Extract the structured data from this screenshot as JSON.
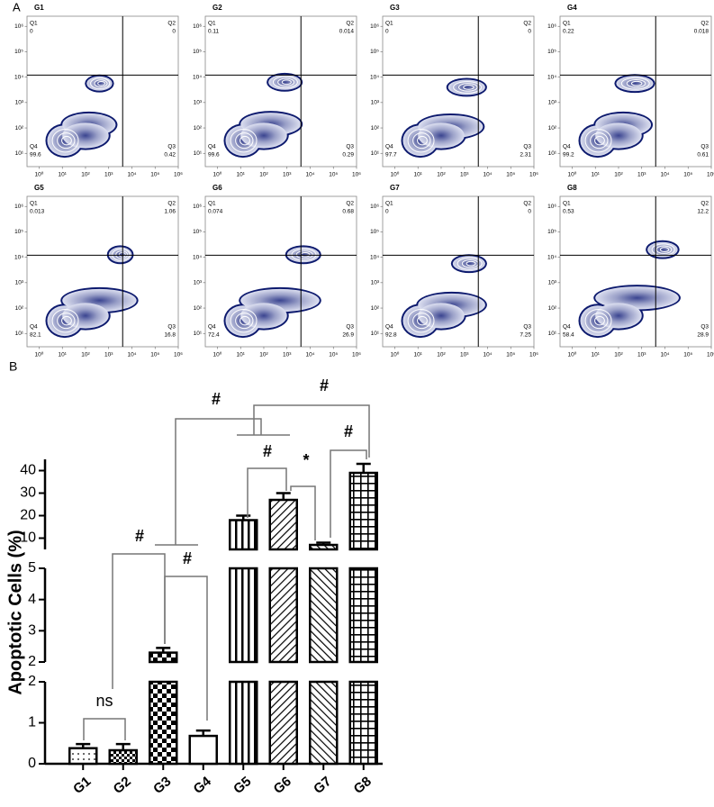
{
  "chart_data": [
    {
      "type": "flow",
      "panel_label": "A",
      "xlim": [
        0.3,
        1000000
      ],
      "ylim": [
        3,
        2500000
      ],
      "xticks": [
        {
          "value": 1,
          "label": "10⁰"
        },
        {
          "value": 10,
          "label": "10¹"
        },
        {
          "value": 100,
          "label": "10²"
        },
        {
          "value": 1000,
          "label": "10³"
        },
        {
          "value": 10000,
          "label": "10⁴"
        },
        {
          "value": 100000,
          "label": "10⁵"
        },
        {
          "value": 1000000,
          "label": "10⁶"
        }
      ],
      "yticks": [
        {
          "value": 10,
          "label": "10¹"
        },
        {
          "value": 100,
          "label": "10²"
        },
        {
          "value": 1000,
          "label": "10³"
        },
        {
          "value": 10000,
          "label": "10⁴"
        },
        {
          "value": 100000,
          "label": "10⁵"
        },
        {
          "value": 1000000,
          "label": "10⁶"
        }
      ],
      "gate": [
        4000,
        12000
      ],
      "plots": [
        {
          "title": "G1",
          "quadrants": [
            {
              "label": "Q1",
              "value": 0
            },
            {
              "label": "Q2",
              "value": 0
            },
            {
              "label": "Q3",
              "value": 0.42
            },
            {
              "label": "Q4",
              "value": 99.6
            }
          ]
        },
        {
          "title": "G2",
          "quadrants": [
            {
              "label": "Q1",
              "value": 0.11
            },
            {
              "label": "Q2",
              "value": 0.014
            },
            {
              "label": "Q3",
              "value": 0.29
            },
            {
              "label": "Q4",
              "value": 99.6
            }
          ]
        },
        {
          "title": "G3",
          "quadrants": [
            {
              "label": "Q1",
              "value": 0
            },
            {
              "label": "Q2",
              "value": 0
            },
            {
              "label": "Q3",
              "value": 2.31
            },
            {
              "label": "Q4",
              "value": 97.7
            }
          ]
        },
        {
          "title": "G4",
          "quadrants": [
            {
              "label": "Q1",
              "value": 0.22
            },
            {
              "label": "Q2",
              "value": 0.018
            },
            {
              "label": "Q3",
              "value": 0.61
            },
            {
              "label": "Q4",
              "value": 99.2
            }
          ]
        },
        {
          "title": "G5",
          "quadrants": [
            {
              "label": "Q1",
              "value": 0.013
            },
            {
              "label": "Q2",
              "value": 1.06
            },
            {
              "label": "Q3",
              "value": 16.8
            },
            {
              "label": "Q4",
              "value": 82.1
            }
          ]
        },
        {
          "title": "G6",
          "quadrants": [
            {
              "label": "Q1",
              "value": 0.074
            },
            {
              "label": "Q2",
              "value": 0.68
            },
            {
              "label": "Q3",
              "value": 26.9
            },
            {
              "label": "Q4",
              "value": 72.4
            }
          ]
        },
        {
          "title": "G7",
          "quadrants": [
            {
              "label": "Q1",
              "value": 0
            },
            {
              "label": "Q2",
              "value": 0
            },
            {
              "label": "Q3",
              "value": 7.25
            },
            {
              "label": "Q4",
              "value": 92.8
            }
          ]
        },
        {
          "title": "G8",
          "quadrants": [
            {
              "label": "Q1",
              "value": 0.53
            },
            {
              "label": "Q2",
              "value": 12.2
            },
            {
              "label": "Q3",
              "value": 28.9
            },
            {
              "label": "Q4",
              "value": 58.4
            }
          ]
        }
      ]
    },
    {
      "type": "bar",
      "panel_label": "B",
      "y_label": "Apoptotic Cells (%)",
      "categories": [
        "G1",
        "G2",
        "G3",
        "G4",
        "G5",
        "G6",
        "G7",
        "G8"
      ],
      "values": [
        0.38,
        0.33,
        2.3,
        0.68,
        18,
        27,
        7,
        39
      ],
      "errors": [
        0.1,
        0.15,
        0.15,
        0.13,
        2,
        3,
        1,
        4
      ],
      "patterns": [
        "dots",
        "fine-checks",
        "checks",
        "none",
        "vertical",
        "diagonal",
        "back-diagonal",
        "grid"
      ],
      "y_segments": [
        {
          "ylim": [
            0,
            2
          ],
          "yticks": [
            0,
            1,
            2
          ]
        },
        {
          "ylim": [
            2,
            5
          ],
          "yticks": [
            2,
            3,
            4,
            5
          ]
        },
        {
          "ylim": [
            5,
            45
          ],
          "yticks": [
            10,
            20,
            30,
            40
          ]
        }
      ],
      "annotations": [
        "ns",
        "#",
        "#",
        "#",
        "*",
        "#",
        "#",
        "#"
      ]
    }
  ]
}
